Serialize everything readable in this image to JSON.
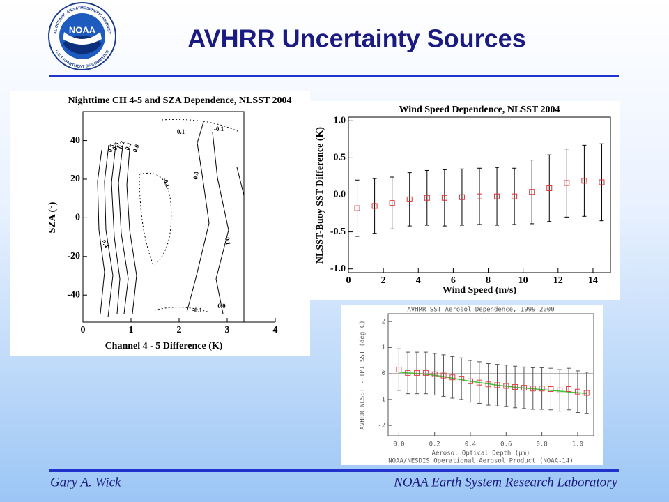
{
  "header": {
    "title": "AVHRR Uncertainty Sources",
    "logo": {
      "text": "NOAA",
      "ring_top": "NATIONAL OCEANIC AND ATMOSPHERIC ADMINISTRATION",
      "ring_bottom": "U.S. DEPARTMENT OF COMMERCE"
    }
  },
  "footer": {
    "author": "Gary A. Wick",
    "organization": "NOAA Earth System Research Laboratory"
  },
  "chart_data": [
    {
      "type": "contour",
      "title": "Nighttime CH 4-5 and SZA Dependence, NLSST  2004",
      "xlabel": "Channel 4 - 5 Difference (K)",
      "ylabel": "SZA (°)",
      "xlim": [
        0,
        4
      ],
      "xticks": [
        0,
        1,
        2,
        3,
        4
      ],
      "ylim": [
        -54,
        55
      ],
      "yticks": [
        -40,
        -20,
        0,
        20,
        40
      ],
      "contour_labels": [
        "0.5",
        "0.3",
        "0.2",
        "0.1",
        "0.0",
        "-0.1",
        "-0.1",
        "-0.1",
        "0.0",
        "0.1",
        "0.4",
        "-0.1",
        "0.0"
      ]
    },
    {
      "type": "scatter",
      "title": "Wind Speed Dependence, NLSST  2004",
      "xlabel": "Wind Speed (m/s)",
      "ylabel": "NLSST-Buoy SST Difference (K)",
      "color": "#e03030",
      "zero_line": true,
      "xlim": [
        0,
        15
      ],
      "xticks": [
        0,
        2,
        4,
        6,
        8,
        10,
        12,
        14
      ],
      "ylim": [
        -1.05,
        1.05
      ],
      "yticks": [
        {
          "value": -1,
          "label": "-1.0"
        },
        {
          "value": -0.5,
          "label": "-0.5"
        },
        {
          "value": 0,
          "label": "0.0"
        },
        {
          "value": 0.5,
          "label": "0.5"
        },
        {
          "value": 1,
          "label": "1.0"
        }
      ],
      "x": [
        0.5,
        1.5,
        2.5,
        3.5,
        4.5,
        5.5,
        6.5,
        7.5,
        8.5,
        9.5,
        10.5,
        11.5,
        12.5,
        13.5,
        14.5
      ],
      "values": [
        -0.18,
        -0.15,
        -0.11,
        -0.06,
        -0.04,
        -0.04,
        -0.03,
        -0.02,
        -0.02,
        -0.02,
        0.04,
        0.09,
        0.16,
        0.19,
        0.17
      ],
      "errors": [
        0.38,
        0.37,
        0.35,
        0.36,
        0.37,
        0.38,
        0.38,
        0.38,
        0.39,
        0.38,
        0.43,
        0.45,
        0.46,
        0.48,
        0.52
      ]
    },
    {
      "type": "scatter",
      "title": "AVHRR SST Aerosol Dependence, 1999-2000",
      "xlabel": "Aerosol Optical Depth (μm)",
      "ylabel": "AVHRR NLSST - TMI SST (deg C)",
      "footnote": "NOAA/NESDIS Operational Aerosol Product (NOAA-14)",
      "color": "#e04040",
      "zero_line": false,
      "xlim": [
        -0.06,
        1.09
      ],
      "xticks": [
        {
          "value": 0,
          "label": "0.0"
        },
        0.2,
        0.4,
        0.6,
        0.8,
        {
          "value": 1,
          "label": "1.0"
        }
      ],
      "ylim": [
        -2.4,
        2.3
      ],
      "yticks": [
        -2,
        -1,
        0,
        1,
        2
      ],
      "x": [
        0,
        0.05,
        0.1,
        0.15,
        0.2,
        0.25,
        0.3,
        0.35,
        0.4,
        0.45,
        0.5,
        0.55,
        0.6,
        0.65,
        0.7,
        0.75,
        0.8,
        0.85,
        0.9,
        0.95,
        1,
        1.05
      ],
      "values": [
        0.15,
        0.02,
        0.02,
        0.02,
        -0.03,
        -0.08,
        -0.15,
        -0.2,
        -0.3,
        -0.35,
        -0.42,
        -0.45,
        -0.48,
        -0.52,
        -0.55,
        -0.58,
        -0.58,
        -0.6,
        -0.65,
        -0.6,
        -0.7,
        -0.75
      ],
      "errors": [
        0.8,
        0.8,
        0.8,
        0.8,
        0.8,
        0.8,
        0.8,
        0.8,
        0.8,
        0.8,
        0.8,
        0.8,
        0.8,
        0.8,
        0.8,
        0.8,
        0.8,
        0.8,
        0.8,
        0.8,
        0.8,
        0.8
      ],
      "fit": {
        "color": "#33cc33",
        "values": [
          0.05,
          0.02,
          0,
          -0.03,
          -0.07,
          -0.12,
          -0.18,
          -0.24,
          -0.3,
          -0.35,
          -0.4,
          -0.45,
          -0.49,
          -0.53,
          -0.56,
          -0.59,
          -0.62,
          -0.65,
          -0.68,
          -0.71,
          -0.74,
          -0.77
        ]
      }
    }
  ]
}
